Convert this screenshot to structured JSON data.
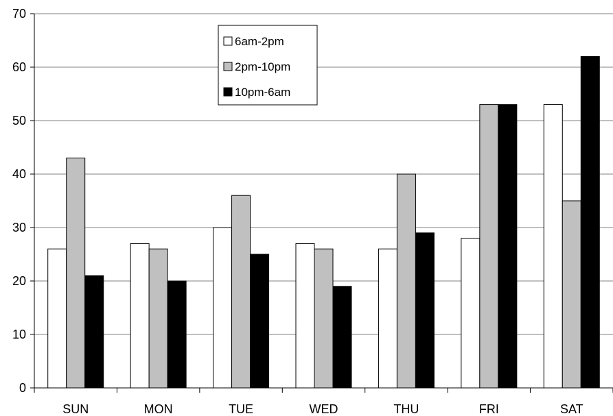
{
  "chart_data": {
    "type": "bar",
    "categories": [
      "SUN",
      "MON",
      "TUE",
      "WED",
      "THU",
      "FRI",
      "SAT"
    ],
    "series": [
      {
        "name": "6am-2pm",
        "color": "#ffffff",
        "values": [
          26,
          27,
          30,
          27,
          26,
          28,
          53
        ]
      },
      {
        "name": "2pm-10pm",
        "color": "#c0c0c0",
        "values": [
          43,
          26,
          36,
          26,
          40,
          53,
          35
        ]
      },
      {
        "name": "10pm-6am",
        "color": "#000000",
        "values": [
          21,
          20,
          25,
          19,
          29,
          53,
          62
        ]
      }
    ],
    "title": "",
    "xlabel": "",
    "ylabel": "",
    "ylim": [
      0,
      70
    ],
    "yticks": [
      0,
      10,
      20,
      30,
      40,
      50,
      60,
      70
    ],
    "grid": "horizontal",
    "legend_position": "top-center"
  }
}
